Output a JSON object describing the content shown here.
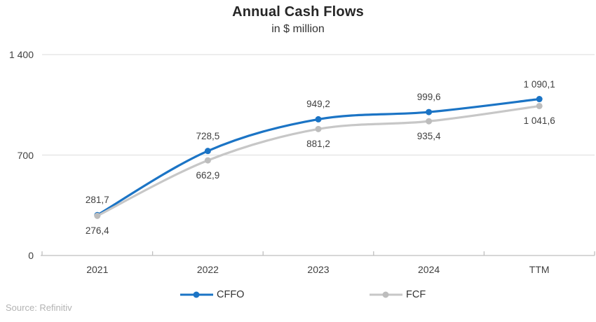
{
  "title": "Annual Cash Flows",
  "subtitle": "in $ million",
  "source": "Source: Refinitiv",
  "colors": {
    "cffo": "#1b74c5",
    "fcf_line": "#c7c7c7",
    "fcf_marker": "#bdbdbd",
    "gridline": "#e2e2e2",
    "axis": "#bfbfbf",
    "text": "#404040"
  },
  "chart_data": {
    "type": "line",
    "categories": [
      "2021",
      "2022",
      "2023",
      "2024",
      "TTM"
    ],
    "series": [
      {
        "name": "CFFO",
        "values": [
          281.7,
          728.5,
          949.2,
          999.6,
          1090.1
        ],
        "labels": [
          "281,7",
          "728,5",
          "949,2",
          "999,6",
          "1 090,1"
        ],
        "color": "#1b74c5",
        "marker_color": "#1b74c5",
        "label_offset": -21
      },
      {
        "name": "FCF",
        "values": [
          276.4,
          662.9,
          881.2,
          935.4,
          1041.6
        ],
        "labels": [
          "276,4",
          "662,9",
          "881,2",
          "935,4",
          "1 041,6"
        ],
        "color": "#c7c7c7",
        "marker_color": "#bdbdbd",
        "label_offset": 22
      }
    ],
    "ylim": [
      0,
      1400
    ],
    "yticks": [
      {
        "value": 0,
        "label": "0"
      },
      {
        "value": 700,
        "label": "700"
      },
      {
        "value": 1400,
        "label": "1 400"
      }
    ],
    "xlabel": "",
    "ylabel": "",
    "grid": true,
    "smooth_lines": true,
    "legend_position": "bottom"
  }
}
